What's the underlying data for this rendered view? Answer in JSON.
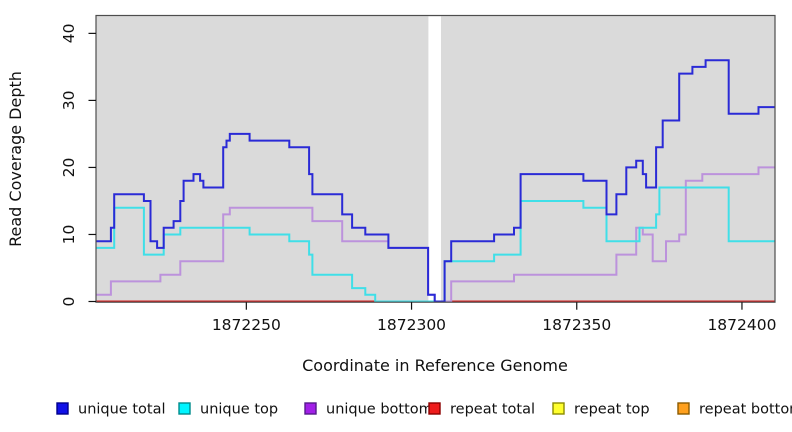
{
  "chart_data": {
    "type": "step-line",
    "title": "",
    "xlabel": "Coordinate in Reference Genome",
    "ylabel": "Read Coverage Depth",
    "xlim": [
      1872204.5,
      1872410
    ],
    "ylim": [
      0,
      41
    ],
    "x_ticks": [
      1872250,
      1872300,
      1872350,
      1872400
    ],
    "y_ticks": [
      0,
      10,
      20,
      30,
      40
    ],
    "panel_background": "#dadada",
    "panel_border_color": "#4d4d4d",
    "grid": "off",
    "legend_position": "bottom",
    "gap_region": {
      "start": 1872305.1,
      "end": 1872308.9,
      "color": "#ffffff"
    },
    "series": [
      {
        "name": "unique total",
        "line_color": "#2a2ad6",
        "legend_fill": "#1010e8",
        "legend_stroke": "#00008b",
        "points": [
          [
            1872204,
            9
          ],
          [
            1872209,
            11
          ],
          [
            1872210,
            16
          ],
          [
            1872219,
            15
          ],
          [
            1872221,
            9
          ],
          [
            1872223,
            8
          ],
          [
            1872225,
            11
          ],
          [
            1872228,
            12
          ],
          [
            1872230,
            15
          ],
          [
            1872231,
            18
          ],
          [
            1872234,
            19
          ],
          [
            1872236,
            18
          ],
          [
            1872237,
            17
          ],
          [
            1872243,
            23
          ],
          [
            1872244,
            24
          ],
          [
            1872245,
            25
          ],
          [
            1872251,
            24
          ],
          [
            1872263,
            23
          ],
          [
            1872269,
            19
          ],
          [
            1872270,
            16
          ],
          [
            1872279,
            13
          ],
          [
            1872282,
            11
          ],
          [
            1872286,
            10
          ],
          [
            1872293,
            8
          ],
          [
            1872305,
            1
          ],
          [
            1872307,
            0
          ],
          [
            1872310,
            6
          ],
          [
            1872312,
            9
          ],
          [
            1872325,
            10
          ],
          [
            1872331,
            11
          ],
          [
            1872333,
            19
          ],
          [
            1872352,
            18
          ],
          [
            1872359,
            13
          ],
          [
            1872362,
            16
          ],
          [
            1872365,
            20
          ],
          [
            1872368,
            21
          ],
          [
            1872370,
            19
          ],
          [
            1872371,
            17
          ],
          [
            1872374,
            23
          ],
          [
            1872376,
            27
          ],
          [
            1872381,
            34
          ],
          [
            1872385,
            35
          ],
          [
            1872389,
            36
          ],
          [
            1872396,
            28
          ],
          [
            1872405,
            29
          ]
        ]
      },
      {
        "name": "unique top",
        "line_color": "#3fdfe8",
        "legend_fill": "#00f5ff",
        "legend_stroke": "#008b8b",
        "points": [
          [
            1872204,
            8
          ],
          [
            1872210,
            14
          ],
          [
            1872219,
            7
          ],
          [
            1872225,
            10
          ],
          [
            1872230,
            11
          ],
          [
            1872251,
            10
          ],
          [
            1872263,
            9
          ],
          [
            1872269,
            7
          ],
          [
            1872270,
            4
          ],
          [
            1872282,
            2
          ],
          [
            1872286,
            1
          ],
          [
            1872289,
            0
          ],
          [
            1872310,
            6
          ],
          [
            1872325,
            7
          ],
          [
            1872333,
            15
          ],
          [
            1872352,
            14
          ],
          [
            1872359,
            9
          ],
          [
            1872369,
            11
          ],
          [
            1872374,
            13
          ],
          [
            1872375,
            17
          ],
          [
            1872396,
            9
          ]
        ]
      },
      {
        "name": "unique bottom",
        "line_color": "#bc92dc",
        "legend_fill": "#a21fe8",
        "legend_stroke": "#551a8b",
        "points": [
          [
            1872204,
            1
          ],
          [
            1872209,
            3
          ],
          [
            1872224,
            4
          ],
          [
            1872230,
            6
          ],
          [
            1872243,
            13
          ],
          [
            1872245,
            14
          ],
          [
            1872270,
            12
          ],
          [
            1872279,
            9
          ],
          [
            1872293,
            8
          ],
          [
            1872305,
            1
          ],
          [
            1872307,
            0
          ],
          [
            1872312,
            3
          ],
          [
            1872331,
            4
          ],
          [
            1872362,
            7
          ],
          [
            1872368,
            11
          ],
          [
            1872370,
            10
          ],
          [
            1872373,
            6
          ],
          [
            1872377,
            9
          ],
          [
            1872381,
            10
          ],
          [
            1872383,
            18
          ],
          [
            1872388,
            19
          ],
          [
            1872405,
            20
          ]
        ]
      },
      {
        "name": "repeat total",
        "line_color": "#d62020",
        "legend_fill": "#ee1c1c",
        "legend_stroke": "#8b0000",
        "points": [
          [
            1872204,
            0
          ]
        ]
      },
      {
        "name": "repeat top",
        "line_color": "#f5f520",
        "legend_fill": "#ffff2e",
        "legend_stroke": "#8b8b00",
        "points": [
          [
            1872204,
            0
          ]
        ]
      },
      {
        "name": "repeat bottom",
        "line_color": "#ff9000",
        "legend_fill": "#ffa01e",
        "legend_stroke": "#8b5a00",
        "points": [
          [
            1872204,
            0
          ]
        ]
      }
    ]
  }
}
